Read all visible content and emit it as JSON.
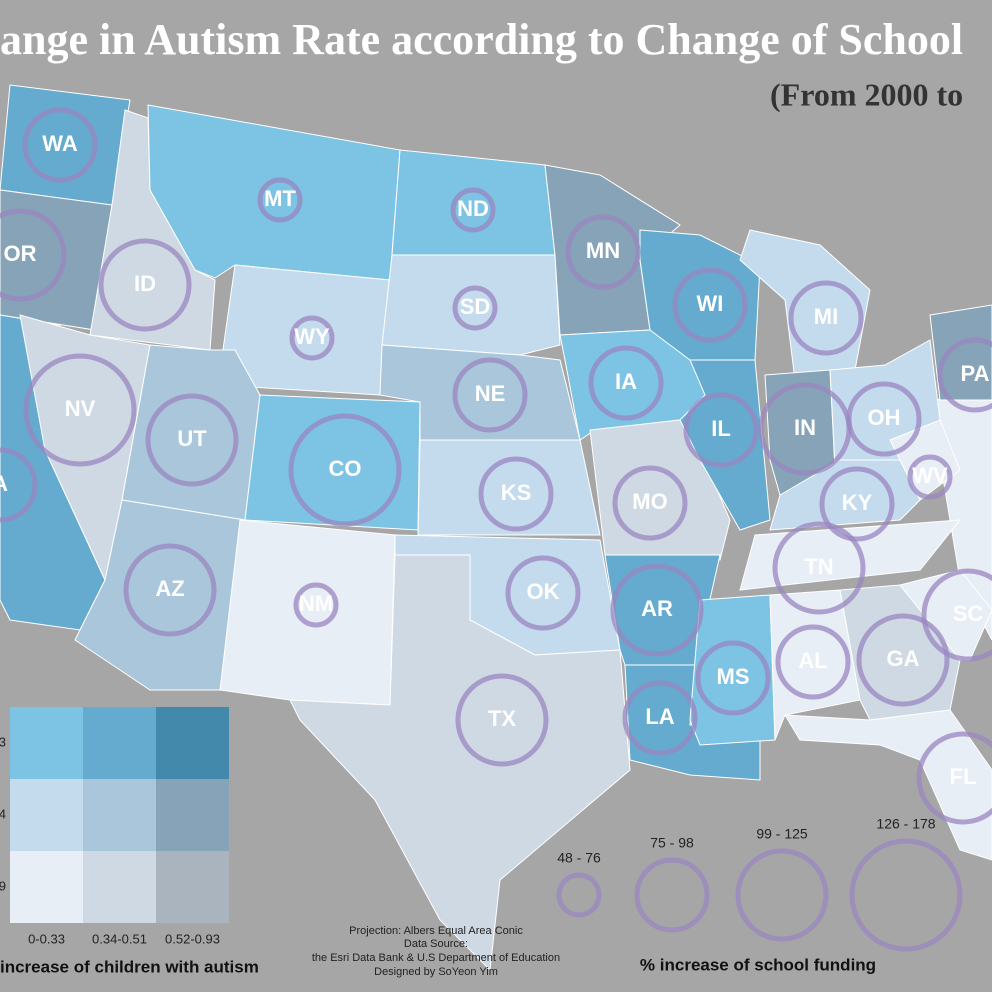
{
  "title": "ange in Autism Rate according to Change of School",
  "subtitle": "(From 2000 to",
  "autism_legend": {
    "title": "increase of children with autism",
    "columns": [
      "0-0.33",
      "0.34-0.51",
      "0.52-0.93"
    ],
    "rows": [
      "3",
      "4",
      "9"
    ],
    "colors": [
      [
        "#7dc3e3",
        "#64abcf",
        "#4389ab"
      ],
      [
        "#c4dbee",
        "#a9c6da",
        "#86a3b7"
      ],
      [
        "#e8eef6",
        "#cfd9e3",
        "#aab4bf"
      ]
    ]
  },
  "funding_legend": {
    "title": "% increase of school funding",
    "bins": [
      "48 - 76",
      "75 - 98",
      "99 - 125",
      "126 - 178"
    ],
    "color": "#9a86c0"
  },
  "credits": [
    "Projection: Albers Equal Area Conic",
    "Data Source:",
    "the Esri Data Bank & U.S Department of Education",
    "Designed by SoYeon Yim"
  ],
  "states": [
    {
      "label": "WA",
      "fill": "#64abcf",
      "funding_bin": "75 - 98"
    },
    {
      "label": "OR",
      "fill": "#86a3b7",
      "funding_bin": "99 - 125"
    },
    {
      "label": "A",
      "fill": "#64abcf",
      "funding_bin": "75 - 98"
    },
    {
      "label": "ID",
      "fill": "#cfd9e3",
      "funding_bin": "99 - 125"
    },
    {
      "label": "NV",
      "fill": "#cfd9e3",
      "funding_bin": "126 - 178"
    },
    {
      "label": "MT",
      "fill": "#7dc3e3",
      "funding_bin": "48 - 76"
    },
    {
      "label": "WY",
      "fill": "#c4dbee",
      "funding_bin": "48 - 76"
    },
    {
      "label": "UT",
      "fill": "#a9c6da",
      "funding_bin": "99 - 125"
    },
    {
      "label": "AZ",
      "fill": "#a9c6da",
      "funding_bin": "99 - 125"
    },
    {
      "label": "CO",
      "fill": "#7dc3e3",
      "funding_bin": "126 - 178"
    },
    {
      "label": "NM",
      "fill": "#e8eef6",
      "funding_bin": "48 - 76"
    },
    {
      "label": "ND",
      "fill": "#7dc3e3",
      "funding_bin": "48 - 76"
    },
    {
      "label": "SD",
      "fill": "#c4dbee",
      "funding_bin": "48 - 76"
    },
    {
      "label": "NE",
      "fill": "#a9c6da",
      "funding_bin": "75 - 98"
    },
    {
      "label": "KS",
      "fill": "#c4dbee",
      "funding_bin": "75 - 98"
    },
    {
      "label": "OK",
      "fill": "#c4dbee",
      "funding_bin": "75 - 98"
    },
    {
      "label": "TX",
      "fill": "#cfd9e3",
      "funding_bin": "99 - 125"
    },
    {
      "label": "MN",
      "fill": "#86a3b7",
      "funding_bin": "75 - 98"
    },
    {
      "label": "IA",
      "fill": "#7dc3e3",
      "funding_bin": "75 - 98"
    },
    {
      "label": "MO",
      "fill": "#cfd9e3",
      "funding_bin": "75 - 98"
    },
    {
      "label": "AR",
      "fill": "#64abcf",
      "funding_bin": "99 - 125"
    },
    {
      "label": "LA",
      "fill": "#64abcf",
      "funding_bin": "75 - 98"
    },
    {
      "label": "MS",
      "fill": "#7dc3e3",
      "funding_bin": "75 - 98"
    },
    {
      "label": "WI",
      "fill": "#64abcf",
      "funding_bin": "75 - 98"
    },
    {
      "label": "IL",
      "fill": "#64abcf",
      "funding_bin": "75 - 98"
    },
    {
      "label": "MI",
      "fill": "#c4dbee",
      "funding_bin": "75 - 98"
    },
    {
      "label": "IN",
      "fill": "#86a3b7",
      "funding_bin": "99 - 125"
    },
    {
      "label": "OH",
      "fill": "#c4dbee",
      "funding_bin": "75 - 98"
    },
    {
      "label": "KY",
      "fill": "#c4dbee",
      "funding_bin": "75 - 98"
    },
    {
      "label": "TN",
      "fill": "#e8eef6",
      "funding_bin": "99 - 125"
    },
    {
      "label": "AL",
      "fill": "#e8eef6",
      "funding_bin": "75 - 98"
    },
    {
      "label": "GA",
      "fill": "#cfd9e3",
      "funding_bin": "99 - 125"
    },
    {
      "label": "FL",
      "fill": "#e8eef6",
      "funding_bin": "99 - 125"
    },
    {
      "label": "SC",
      "fill": "#e8eef6",
      "funding_bin": "99 - 125"
    },
    {
      "label": "WV",
      "fill": "#e8eef6",
      "funding_bin": "48 - 76"
    },
    {
      "label": "PA",
      "fill": "#86a3b7",
      "funding_bin": "75 - 98"
    }
  ]
}
